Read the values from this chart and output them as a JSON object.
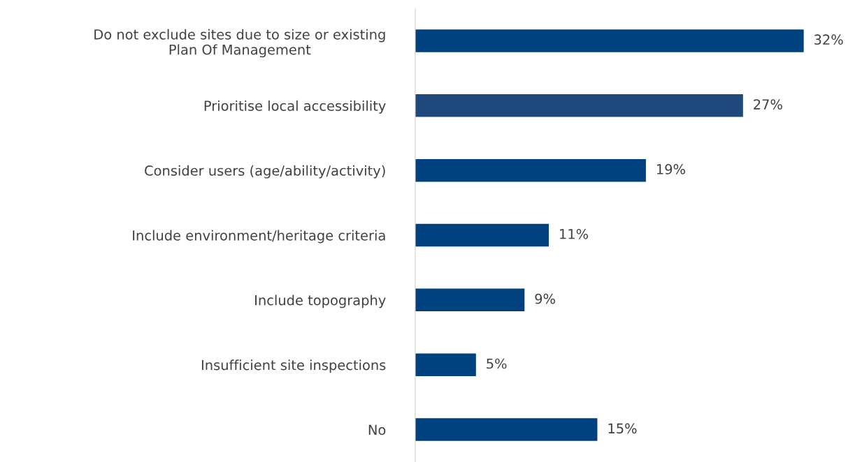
{
  "chart_data": {
    "type": "bar",
    "orientation": "horizontal",
    "categories": [
      "Do not exclude sites due to size or existing\nPlan Of Management",
      "Prioritise local accessibility",
      "Consider users (age/ability/activity)",
      "Include environment/heritage criteria",
      "Include topography",
      "Insufficient site inspections",
      "No"
    ],
    "values": [
      32,
      27,
      19,
      11,
      9,
      5,
      15
    ],
    "colors": [
      "#004180",
      "#1f497d",
      "#004180",
      "#004180",
      "#004180",
      "#004180",
      "#004180"
    ],
    "value_labels": [
      "32%",
      "27%",
      "19%",
      "11%",
      "9%",
      "5%",
      "15%"
    ],
    "grid": false,
    "legend": false
  }
}
